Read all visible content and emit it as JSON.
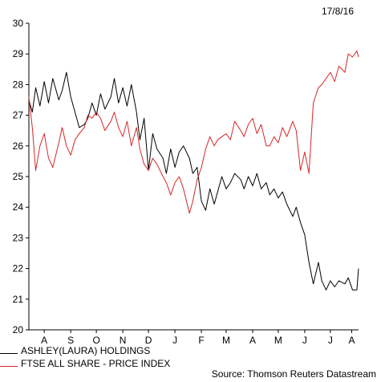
{
  "date_label": "17/8/16",
  "source": "Source: Thomson Reuters Datastream",
  "chart_data": {
    "type": "line",
    "title": "",
    "xlabel": "",
    "ylabel": "",
    "ylim": [
      20,
      30
    ],
    "yticks": [
      20,
      21,
      22,
      23,
      24,
      25,
      26,
      27,
      28,
      29,
      30
    ],
    "xlim": [
      "2015-07-28",
      "2016-08-17"
    ],
    "month_labels": [
      "A",
      "S",
      "O",
      "N",
      "D",
      "J",
      "F",
      "M",
      "A",
      "M",
      "J",
      "J",
      "A"
    ],
    "month_label_dates": [
      "2015-08-15",
      "2015-09-15",
      "2015-10-15",
      "2015-11-15",
      "2015-12-15",
      "2016-01-15",
      "2016-02-15",
      "2016-03-15",
      "2016-04-15",
      "2016-05-15",
      "2016-06-15",
      "2016-07-15",
      "2016-08-09"
    ],
    "grid": false,
    "legend_position": "bottom-left",
    "series": [
      {
        "name": "ASHLEY(LAURA) HOLDINGS",
        "color": "#000000",
        "x": [
          "2015-07-28",
          "2015-08-01",
          "2015-08-05",
          "2015-08-10",
          "2015-08-15",
          "2015-08-20",
          "2015-08-25",
          "2015-09-01",
          "2015-09-05",
          "2015-09-10",
          "2015-09-15",
          "2015-09-20",
          "2015-09-25",
          "2015-10-01",
          "2015-10-05",
          "2015-10-10",
          "2015-10-15",
          "2015-10-20",
          "2015-10-25",
          "2015-11-01",
          "2015-11-05",
          "2015-11-10",
          "2015-11-15",
          "2015-11-20",
          "2015-11-25",
          "2015-12-01",
          "2015-12-05",
          "2015-12-10",
          "2015-12-15",
          "2015-12-20",
          "2015-12-25",
          "2016-01-01",
          "2016-01-05",
          "2016-01-10",
          "2016-01-15",
          "2016-01-20",
          "2016-01-25",
          "2016-02-01",
          "2016-02-05",
          "2016-02-10",
          "2016-02-15",
          "2016-02-20",
          "2016-02-25",
          "2016-03-01",
          "2016-03-05",
          "2016-03-10",
          "2016-03-15",
          "2016-03-20",
          "2016-03-25",
          "2016-04-01",
          "2016-04-05",
          "2016-04-10",
          "2016-04-15",
          "2016-04-20",
          "2016-04-25",
          "2016-05-01",
          "2016-05-05",
          "2016-05-10",
          "2016-05-15",
          "2016-05-20",
          "2016-05-25",
          "2016-06-01",
          "2016-06-05",
          "2016-06-10",
          "2016-06-15",
          "2016-06-20",
          "2016-06-25",
          "2016-07-01",
          "2016-07-05",
          "2016-07-10",
          "2016-07-15",
          "2016-07-20",
          "2016-07-25",
          "2016-08-01",
          "2016-08-05",
          "2016-08-10",
          "2016-08-15",
          "2016-08-17"
        ],
        "values": [
          27.5,
          27.1,
          27.9,
          27.3,
          28.1,
          27.4,
          28.2,
          27.5,
          27.8,
          28.4,
          27.6,
          27.1,
          26.6,
          26.7,
          26.9,
          27.4,
          27.0,
          27.7,
          27.2,
          27.6,
          28.2,
          27.4,
          27.9,
          27.3,
          28.0,
          27.1,
          26.2,
          26.9,
          25.2,
          26.4,
          25.9,
          25.6,
          25.1,
          25.9,
          25.3,
          25.8,
          26.0,
          25.6,
          25.1,
          25.3,
          24.2,
          23.9,
          24.6,
          24.1,
          24.5,
          25.0,
          24.6,
          24.8,
          25.1,
          24.9,
          24.6,
          25.0,
          24.7,
          25.1,
          24.6,
          24.8,
          24.4,
          24.6,
          24.3,
          24.5,
          24.1,
          23.7,
          24.0,
          23.5,
          23.1,
          22.2,
          21.5,
          22.2,
          21.6,
          21.3,
          21.6,
          21.4,
          21.6,
          21.5,
          21.7,
          21.3,
          21.3,
          22.0
        ]
      },
      {
        "name": "FTSE ALL SHARE - PRICE INDEX",
        "color": "#d62728",
        "x": [
          "2015-07-28",
          "2015-08-01",
          "2015-08-05",
          "2015-08-10",
          "2015-08-15",
          "2015-08-20",
          "2015-08-25",
          "2015-09-01",
          "2015-09-05",
          "2015-09-10",
          "2015-09-15",
          "2015-09-20",
          "2015-09-25",
          "2015-10-01",
          "2015-10-05",
          "2015-10-10",
          "2015-10-15",
          "2015-10-20",
          "2015-10-25",
          "2015-11-01",
          "2015-11-05",
          "2015-11-10",
          "2015-11-15",
          "2015-11-20",
          "2015-11-25",
          "2015-12-01",
          "2015-12-05",
          "2015-12-10",
          "2015-12-15",
          "2015-12-20",
          "2015-12-25",
          "2016-01-01",
          "2016-01-05",
          "2016-01-10",
          "2016-01-15",
          "2016-01-20",
          "2016-01-25",
          "2016-02-01",
          "2016-02-05",
          "2016-02-10",
          "2016-02-15",
          "2016-02-20",
          "2016-02-25",
          "2016-03-01",
          "2016-03-05",
          "2016-03-10",
          "2016-03-15",
          "2016-03-20",
          "2016-03-25",
          "2016-04-01",
          "2016-04-05",
          "2016-04-10",
          "2016-04-15",
          "2016-04-20",
          "2016-04-25",
          "2016-05-01",
          "2016-05-05",
          "2016-05-10",
          "2016-05-15",
          "2016-05-20",
          "2016-05-25",
          "2016-06-01",
          "2016-06-05",
          "2016-06-10",
          "2016-06-15",
          "2016-06-20",
          "2016-06-25",
          "2016-07-01",
          "2016-07-05",
          "2016-07-10",
          "2016-07-15",
          "2016-07-20",
          "2016-07-25",
          "2016-08-01",
          "2016-08-05",
          "2016-08-10",
          "2016-08-15",
          "2016-08-17"
        ],
        "values": [
          27.6,
          26.6,
          25.2,
          26.0,
          26.4,
          25.6,
          25.3,
          26.1,
          26.6,
          26.0,
          25.7,
          26.2,
          26.4,
          26.6,
          27.0,
          26.9,
          27.1,
          26.9,
          26.5,
          26.8,
          27.1,
          26.6,
          26.3,
          26.8,
          26.0,
          26.6,
          25.9,
          25.4,
          25.2,
          25.6,
          25.4,
          25.0,
          24.8,
          24.4,
          24.8,
          25.0,
          24.6,
          23.8,
          24.2,
          24.9,
          25.3,
          25.9,
          26.3,
          26.0,
          26.2,
          26.3,
          26.4,
          26.2,
          26.8,
          26.5,
          26.3,
          26.7,
          26.9,
          26.4,
          26.7,
          26.0,
          26.0,
          26.3,
          26.1,
          26.6,
          26.3,
          26.8,
          26.5,
          25.2,
          25.8,
          25.1,
          27.4,
          27.9,
          28.0,
          28.2,
          28.4,
          28.1,
          28.6,
          28.4,
          29.0,
          28.9,
          29.1,
          28.9
        ]
      }
    ]
  }
}
